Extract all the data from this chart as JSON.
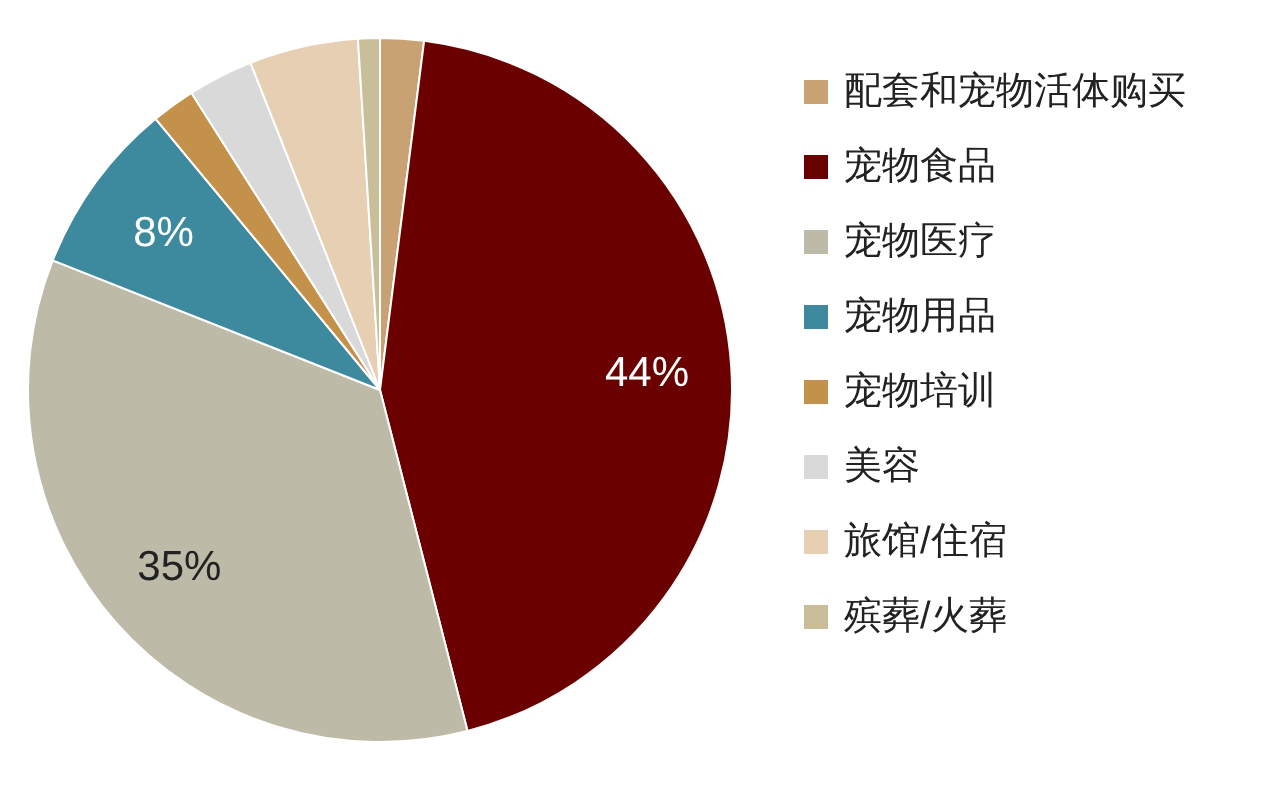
{
  "chart_data": {
    "type": "pie",
    "categories": [
      "配套和宠物活体购买",
      "宠物食品",
      "宠物医疗",
      "宠物用品",
      "宠物培训",
      "美容",
      "旅馆/住宿",
      "殡葬/火葬"
    ],
    "values": [
      2,
      44,
      35,
      8,
      2,
      3,
      5,
      1
    ],
    "colors": [
      "#c9a274",
      "#6b0000",
      "#bdbaa8",
      "#3d8a9e",
      "#c4914a",
      "#d9d9d9",
      "#e6cfb3",
      "#c8bf98"
    ],
    "value_labels": [
      null,
      "44%",
      "35%",
      "8%",
      null,
      null,
      null,
      null
    ],
    "legend": "right"
  }
}
